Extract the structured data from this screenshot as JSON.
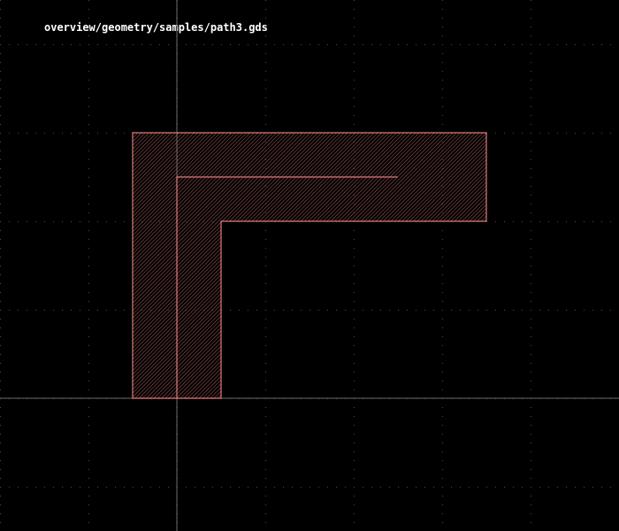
{
  "title": "overview/geometry/samples/path3.gds",
  "colors": {
    "background": "#000000",
    "title": "#ffffff",
    "grid_dots": "#4d4d4d",
    "axis": "#6b6b6b",
    "shape_outline": "#e07a7a",
    "shape_hatch": "#b35f5f",
    "path_centerline": "#e07a7a"
  },
  "layout_view": {
    "grid": true,
    "axes": true,
    "fill": "diagonal hatch",
    "shape": "L-shaped path with centerline"
  }
}
